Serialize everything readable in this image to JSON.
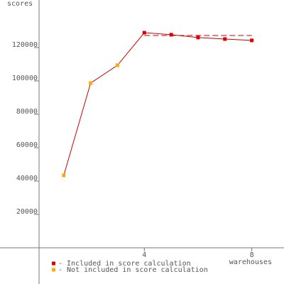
{
  "chart_data": {
    "type": "line",
    "y_label": "scores",
    "x_label": "warehouses",
    "x": [
      1,
      2,
      3,
      4,
      5,
      6,
      7,
      8
    ],
    "values": [
      43400,
      98700,
      109400,
      128900,
      127700,
      126000,
      125100,
      124300
    ],
    "point_series": [
      1,
      1,
      1,
      0,
      0,
      0,
      0,
      0
    ],
    "line_color": "#cc0000",
    "series": [
      {
        "name": "- Included in score calculation",
        "color": "#dd0000"
      },
      {
        "name": "- Not included in score calculation",
        "color": "#ffaa00"
      }
    ],
    "reference": {
      "x": [
        4,
        8
      ],
      "value": 127200,
      "color": "#cc0000"
    },
    "xlim": [
      0,
      9.2
    ],
    "ylim": [
      -21700,
      148500
    ],
    "xticks": [
      4,
      8
    ],
    "yticks": [
      20000,
      40000,
      60000,
      80000,
      100000,
      120000
    ]
  }
}
